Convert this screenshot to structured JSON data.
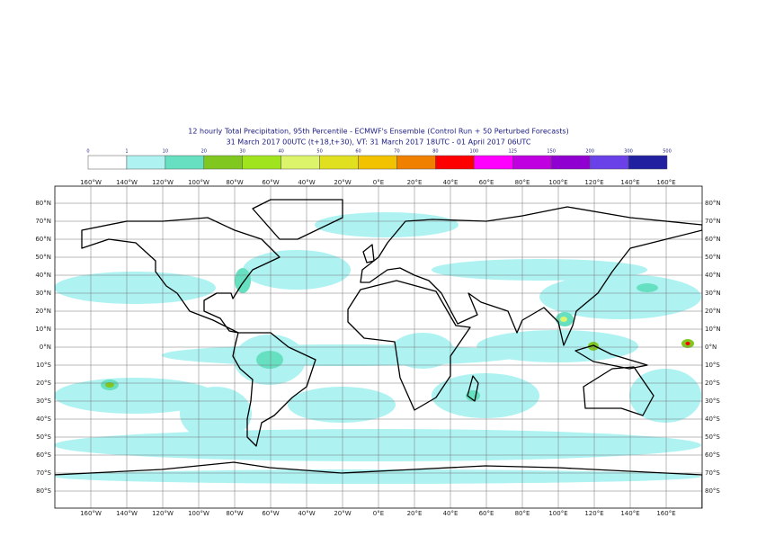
{
  "title_lines": [
    "12 hourly Total Precipitation, 95th Percentile - ECMWF's Ensemble (Control Run + 50 Perturbed Forecasts)",
    "31 March 2017 00UTC (t+18,t+30), VT: 31 March 2017 18UTC - 01 April 2017 06UTC"
  ],
  "colorbar": {
    "levels": [
      "0",
      "1",
      "10",
      "20",
      "30",
      "40",
      "50",
      "60",
      "70",
      "80",
      "100",
      "125",
      "150",
      "200",
      "300",
      "500"
    ],
    "colors": [
      "#ffffff",
      "#aef2f2",
      "#66e0c0",
      "#80c820",
      "#a0e41e",
      "#dcf46a",
      "#e0e020",
      "#f2c200",
      "#f08000",
      "#ff0000",
      "#ff00ff",
      "#c000e0",
      "#9000d0",
      "#6a40e8",
      "#2020a0",
      "#101050"
    ]
  },
  "lon_labels": [
    "160°W",
    "140°W",
    "120°W",
    "100°W",
    "80°W",
    "60°W",
    "40°W",
    "20°W",
    "0°E",
    "20°E",
    "40°E",
    "60°E",
    "80°E",
    "100°E",
    "120°E",
    "140°E",
    "160°E"
  ],
  "lat_labels": [
    "80°N",
    "70°N",
    "60°N",
    "50°N",
    "40°N",
    "30°N",
    "20°N",
    "10°N",
    "0°N",
    "10°S",
    "20°S",
    "30°S",
    "40°S",
    "50°S",
    "60°S",
    "70°S",
    "80°S"
  ]
}
